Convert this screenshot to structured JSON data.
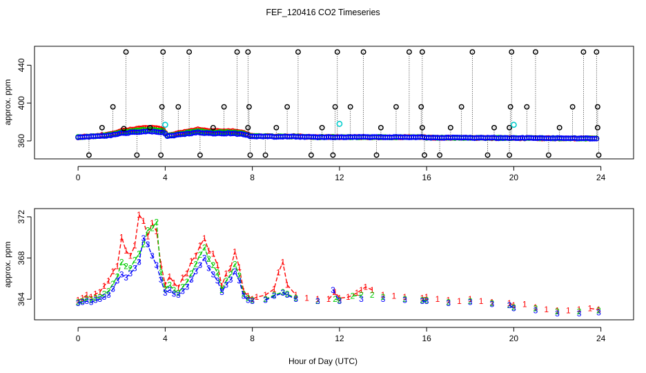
{
  "figure": {
    "title": "FEF_120416  CO2 Timeseries",
    "xlabel": "Hour of Day (UTC)"
  },
  "chart_data": [
    {
      "type": "scatter",
      "id": "top",
      "ylabel": "approx. ppm",
      "xlim": [
        -2,
        25.5
      ],
      "ylim": [
        341,
        460
      ],
      "xticks": [
        0,
        4,
        8,
        12,
        16,
        20,
        24
      ],
      "yticks": [
        360,
        400,
        440
      ],
      "clip_high": 454,
      "clip_low": 345,
      "baseline": [
        [
          0,
          364
        ],
        [
          0.5,
          364.5
        ],
        [
          1,
          365
        ],
        [
          1.5,
          366
        ],
        [
          2,
          368
        ],
        [
          2.5,
          369
        ],
        [
          3,
          370
        ],
        [
          3.5,
          370
        ],
        [
          3.9,
          369
        ],
        [
          4.1,
          365
        ],
        [
          4.8,
          367
        ],
        [
          5.5,
          369
        ],
        [
          6,
          368
        ],
        [
          6.5,
          368
        ],
        [
          7,
          368
        ],
        [
          7.6,
          367
        ],
        [
          7.9,
          365
        ],
        [
          9,
          364.5
        ],
        [
          10,
          364.5
        ],
        [
          11,
          364
        ],
        [
          12,
          364
        ],
        [
          14,
          364
        ],
        [
          15.8,
          364
        ],
        [
          16,
          363.5
        ],
        [
          19.8,
          363
        ],
        [
          20,
          363
        ],
        [
          24,
          362.5
        ]
      ],
      "series": [
        {
          "name": "1",
          "color": "#ff0000",
          "offset": 2.5
        },
        {
          "name": "2",
          "color": "#00cc00",
          "offset": 1.2
        },
        {
          "name": "3",
          "color": "#0000ff",
          "offset": 0
        }
      ],
      "cyan_markers": [
        [
          4.0,
          377
        ],
        [
          12.0,
          378
        ],
        [
          20.0,
          377
        ]
      ],
      "high_spikes": [
        2.2,
        3.9,
        5.1,
        7.3,
        7.8,
        10.1,
        11.9,
        13.1,
        15.2,
        15.8,
        18.1,
        19.9,
        21.0,
        23.2,
        23.8
      ],
      "mid_spikes": [
        [
          1.6,
          396
        ],
        [
          3.85,
          396
        ],
        [
          4.6,
          396
        ],
        [
          6.7,
          396
        ],
        [
          7.85,
          396
        ],
        [
          9.6,
          396
        ],
        [
          11.8,
          396
        ],
        [
          12.5,
          396
        ],
        [
          14.6,
          396
        ],
        [
          15.75,
          396
        ],
        [
          17.6,
          396
        ],
        [
          19.85,
          396
        ],
        [
          20.6,
          396
        ],
        [
          22.7,
          396
        ],
        [
          23.85,
          396
        ]
      ],
      "low_spikes": [
        0.5,
        2.7,
        3.8,
        5.6,
        7.9,
        8.6,
        10.7,
        11.7,
        13.7,
        15.9,
        16.6,
        18.8,
        19.8,
        21.6,
        23.9
      ],
      "mid_markers": [
        [
          1.1,
          374
        ],
        [
          2.1,
          373
        ],
        [
          3.3,
          374
        ],
        [
          6.2,
          374
        ],
        [
          7.8,
          374
        ],
        [
          9.1,
          374
        ],
        [
          11.2,
          374
        ],
        [
          13.9,
          374
        ],
        [
          15.8,
          374
        ],
        [
          17.1,
          374
        ],
        [
          19.1,
          374
        ],
        [
          19.8,
          374
        ],
        [
          22.1,
          374
        ],
        [
          23.85,
          374
        ]
      ]
    },
    {
      "type": "line",
      "id": "bottom",
      "ylabel": "approx. ppm",
      "xlim": [
        -2,
        25.5
      ],
      "ylim": [
        362,
        372.8
      ],
      "xticks": [
        0,
        4,
        8,
        12,
        16,
        20,
        24
      ],
      "yticks": [
        364,
        368,
        372
      ],
      "series": [
        {
          "name": "1",
          "color": "#ff0000",
          "points": [
            [
              0,
              363.9
            ],
            [
              0.2,
              364.1
            ],
            [
              0.4,
              364.4
            ],
            [
              0.6,
              364.2
            ],
            [
              0.8,
              364.5
            ],
            [
              1.0,
              364.7
            ],
            [
              1.2,
              365.3
            ],
            [
              1.4,
              365.8
            ],
            [
              1.6,
              366.7
            ],
            [
              1.8,
              367.2
            ],
            [
              2.0,
              370.0
            ],
            [
              2.2,
              368.7
            ],
            [
              2.4,
              368.2
            ],
            [
              2.6,
              369.2
            ],
            [
              2.8,
              372.2
            ],
            [
              3.0,
              371.6
            ],
            [
              3.2,
              370.1
            ],
            [
              3.4,
              371.4
            ],
            [
              3.6,
              370.6
            ],
            [
              3.8,
              367.4
            ],
            [
              4.0,
              365.4
            ],
            [
              4.2,
              366.2
            ],
            [
              4.4,
              365.6
            ],
            [
              4.6,
              365.1
            ],
            [
              4.8,
              366.1
            ],
            [
              5.0,
              366.5
            ],
            [
              5.2,
              367.7
            ],
            [
              5.4,
              368.2
            ],
            [
              5.6,
              369.2
            ],
            [
              5.8,
              369.9
            ],
            [
              6.0,
              368.7
            ],
            [
              6.2,
              368.4
            ],
            [
              6.4,
              367.3
            ],
            [
              6.6,
              365.3
            ],
            [
              6.8,
              366.5
            ],
            [
              7.0,
              367.0
            ],
            [
              7.2,
              368.6
            ],
            [
              7.4,
              367.1
            ],
            [
              7.6,
              364.8
            ],
            [
              7.8,
              364.3
            ],
            [
              8.0,
              364.0
            ],
            [
              8.2,
              364.2
            ],
            [
              8.6,
              364.4
            ],
            [
              9.0,
              365.0
            ],
            [
              9.2,
              366.6
            ],
            [
              9.4,
              367.6
            ],
            [
              9.6,
              365.4
            ],
            [
              10.0,
              364.4
            ],
            [
              10.5,
              364.1
            ],
            [
              11.0,
              364.0
            ],
            [
              11.5,
              364.0
            ],
            [
              11.8,
              364.7
            ],
            [
              12.0,
              364.1
            ],
            [
              12.4,
              364.2
            ],
            [
              12.8,
              364.6
            ],
            [
              13.0,
              364.9
            ],
            [
              13.2,
              365.2
            ],
            [
              13.5,
              364.9
            ],
            [
              14.0,
              364.4
            ],
            [
              14.5,
              364.3
            ],
            [
              15.0,
              364.2
            ],
            [
              15.8,
              364.1
            ],
            [
              16.0,
              364.2
            ],
            [
              16.5,
              364.0
            ],
            [
              17.0,
              363.9
            ],
            [
              17.5,
              363.8
            ],
            [
              18.0,
              364.0
            ],
            [
              18.5,
              363.8
            ],
            [
              19.0,
              363.7
            ],
            [
              19.8,
              363.6
            ],
            [
              20.0,
              363.4
            ],
            [
              20.5,
              363.5
            ],
            [
              21.0,
              363.2
            ],
            [
              21.5,
              363.0
            ],
            [
              22.0,
              362.9
            ],
            [
              22.5,
              362.9
            ],
            [
              23.0,
              363.0
            ],
            [
              23.5,
              363.1
            ],
            [
              23.9,
              363.0
            ]
          ]
        },
        {
          "name": "2",
          "color": "#00cc00",
          "points": [
            [
              0,
              363.7
            ],
            [
              0.2,
              363.8
            ],
            [
              0.4,
              364.0
            ],
            [
              0.6,
              363.9
            ],
            [
              0.8,
              364.1
            ],
            [
              1.0,
              364.2
            ],
            [
              1.2,
              364.5
            ],
            [
              1.4,
              364.8
            ],
            [
              1.6,
              365.5
            ],
            [
              1.8,
              366.2
            ],
            [
              2.0,
              367.6
            ],
            [
              2.2,
              367.2
            ],
            [
              2.4,
              367.0
            ],
            [
              2.6,
              367.8
            ],
            [
              2.8,
              368.4
            ],
            [
              3.0,
              369.3
            ],
            [
              3.2,
              370.7
            ],
            [
              3.4,
              370.9
            ],
            [
              3.6,
              371.5
            ],
            [
              3.8,
              366.6
            ],
            [
              4.0,
              365.0
            ],
            [
              4.2,
              365.4
            ],
            [
              4.4,
              364.9
            ],
            [
              4.6,
              364.6
            ],
            [
              4.8,
              365.2
            ],
            [
              5.0,
              365.7
            ],
            [
              5.2,
              366.5
            ],
            [
              5.4,
              367.4
            ],
            [
              5.6,
              368.3
            ],
            [
              5.8,
              369.0
            ],
            [
              6.0,
              367.9
            ],
            [
              6.2,
              367.3
            ],
            [
              6.4,
              366.6
            ],
            [
              6.6,
              364.9
            ],
            [
              6.8,
              365.8
            ],
            [
              7.0,
              366.4
            ],
            [
              7.2,
              367.4
            ],
            [
              7.4,
              366.3
            ],
            [
              7.6,
              364.5
            ],
            [
              7.8,
              364.1
            ],
            [
              8.0,
              363.9
            ],
            [
              8.6,
              364.0
            ],
            [
              9.0,
              364.4
            ],
            [
              9.4,
              364.7
            ],
            [
              9.6,
              364.5
            ],
            [
              10.0,
              364.1
            ],
            [
              11.0,
              363.8
            ],
            [
              11.8,
              364.0
            ],
            [
              12.0,
              363.9
            ],
            [
              12.6,
              364.3
            ],
            [
              13.0,
              364.4
            ],
            [
              13.5,
              364.4
            ],
            [
              14.0,
              364.2
            ],
            [
              15.0,
              364.0
            ],
            [
              15.8,
              363.9
            ],
            [
              16.0,
              363.9
            ],
            [
              17.0,
              363.7
            ],
            [
              18.0,
              363.8
            ],
            [
              19.0,
              363.6
            ],
            [
              19.8,
              363.4
            ],
            [
              20.0,
              363.2
            ],
            [
              21.0,
              363.1
            ],
            [
              22.0,
              362.8
            ],
            [
              23.0,
              362.8
            ],
            [
              23.9,
              362.9
            ]
          ]
        },
        {
          "name": "3",
          "color": "#0000ff",
          "points": [
            [
              0,
              363.6
            ],
            [
              0.2,
              363.7
            ],
            [
              0.4,
              363.8
            ],
            [
              0.6,
              363.7
            ],
            [
              0.8,
              363.9
            ],
            [
              1.0,
              364.0
            ],
            [
              1.2,
              364.2
            ],
            [
              1.4,
              364.4
            ],
            [
              1.6,
              365.0
            ],
            [
              1.8,
              365.8
            ],
            [
              2.0,
              366.4
            ],
            [
              2.2,
              366.1
            ],
            [
              2.4,
              366.5
            ],
            [
              2.6,
              367.0
            ],
            [
              2.8,
              367.6
            ],
            [
              3.0,
              369.9
            ],
            [
              3.2,
              369.3
            ],
            [
              3.4,
              368.2
            ],
            [
              3.6,
              367.3
            ],
            [
              3.8,
              365.9
            ],
            [
              4.0,
              364.6
            ],
            [
              4.2,
              364.9
            ],
            [
              4.4,
              364.5
            ],
            [
              4.6,
              364.4
            ],
            [
              4.8,
              364.8
            ],
            [
              5.0,
              365.2
            ],
            [
              5.2,
              365.9
            ],
            [
              5.4,
              366.7
            ],
            [
              5.6,
              367.3
            ],
            [
              5.8,
              368.0
            ],
            [
              6.0,
              367.0
            ],
            [
              6.2,
              366.4
            ],
            [
              6.4,
              365.8
            ],
            [
              6.6,
              364.7
            ],
            [
              6.8,
              365.4
            ],
            [
              7.0,
              365.9
            ],
            [
              7.2,
              366.7
            ],
            [
              7.4,
              365.8
            ],
            [
              7.6,
              364.3
            ],
            [
              7.8,
              363.9
            ],
            [
              8.0,
              363.8
            ],
            [
              8.6,
              363.9
            ],
            [
              9.0,
              364.3
            ],
            [
              9.4,
              364.6
            ],
            [
              9.6,
              364.4
            ],
            [
              10.0,
              364.0
            ],
            [
              11.0,
              363.8
            ],
            [
              11.7,
              364.9
            ],
            [
              12.0,
              363.8
            ],
            [
              13.0,
              364.0
            ],
            [
              14.0,
              364.0
            ],
            [
              15.0,
              363.9
            ],
            [
              15.8,
              363.8
            ],
            [
              16.0,
              363.8
            ],
            [
              17.0,
              363.6
            ],
            [
              18.0,
              363.7
            ],
            [
              19.0,
              363.5
            ],
            [
              19.8,
              363.4
            ],
            [
              20.0,
              363.1
            ],
            [
              21.0,
              362.9
            ],
            [
              22.0,
              362.6
            ],
            [
              23.0,
              362.6
            ],
            [
              23.9,
              362.7
            ]
          ]
        }
      ]
    }
  ]
}
